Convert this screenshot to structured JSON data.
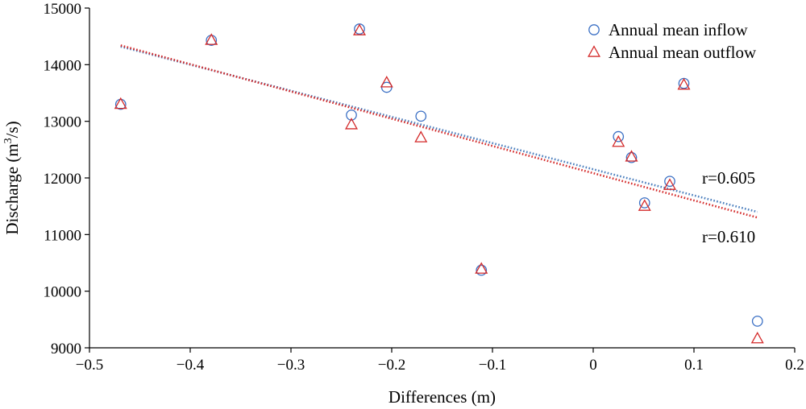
{
  "chart_data": {
    "type": "scatter",
    "xlabel": "Differences (m)",
    "ylabel": "Discharge (m³/s)",
    "ylabel_parts": {
      "before": "Discharge (m",
      "sup": "3",
      "after": "/s)"
    },
    "xlim": [
      -0.5,
      0.2
    ],
    "ylim": [
      9000,
      15000
    ],
    "xticks": [
      -0.5,
      -0.4,
      -0.3,
      -0.2,
      -0.1,
      0,
      0.1,
      0.2
    ],
    "xtick_labels": [
      "−0.5",
      "−0.4",
      "−0.3",
      "−0.2",
      "−0.1",
      "0",
      "0.1",
      "0.2"
    ],
    "yticks": [
      9000,
      10000,
      11000,
      12000,
      13000,
      14000,
      15000
    ],
    "ytick_labels": [
      "9000",
      "10000",
      "11000",
      "12000",
      "13000",
      "14000",
      "15000"
    ],
    "grid": false,
    "legend_position": "top-right",
    "series": [
      {
        "name": "Annual mean inflow",
        "marker": "circle",
        "color": "#3a6fc4",
        "trend_color": "#4a7ebd",
        "x": [
          -0.469,
          -0.379,
          -0.232,
          -0.24,
          -0.205,
          -0.171,
          -0.111,
          0.025,
          0.038,
          0.051,
          0.076,
          0.09,
          0.163
        ],
        "y": [
          13300,
          14430,
          14630,
          13110,
          13600,
          13090,
          10370,
          12730,
          12360,
          11560,
          11940,
          13670,
          9470
        ],
        "trend": {
          "x": [
            -0.469,
            0.163
          ],
          "y": [
            14320,
            11400
          ]
        },
        "r_label": "r=0.605"
      },
      {
        "name": "Annual mean outflow",
        "marker": "triangle",
        "color": "#d42a2a",
        "trend_color": "#d42a2a",
        "x": [
          -0.469,
          -0.379,
          -0.232,
          -0.24,
          -0.205,
          -0.171,
          -0.111,
          0.025,
          0.038,
          0.051,
          0.076,
          0.09,
          0.163
        ],
        "y": [
          13300,
          14430,
          14600,
          12940,
          13680,
          12710,
          10390,
          12630,
          12370,
          11500,
          11870,
          13640,
          9160
        ],
        "trend": {
          "x": [
            -0.469,
            0.163
          ],
          "y": [
            14340,
            11300
          ]
        },
        "r_label": "r=0.610"
      }
    ]
  }
}
